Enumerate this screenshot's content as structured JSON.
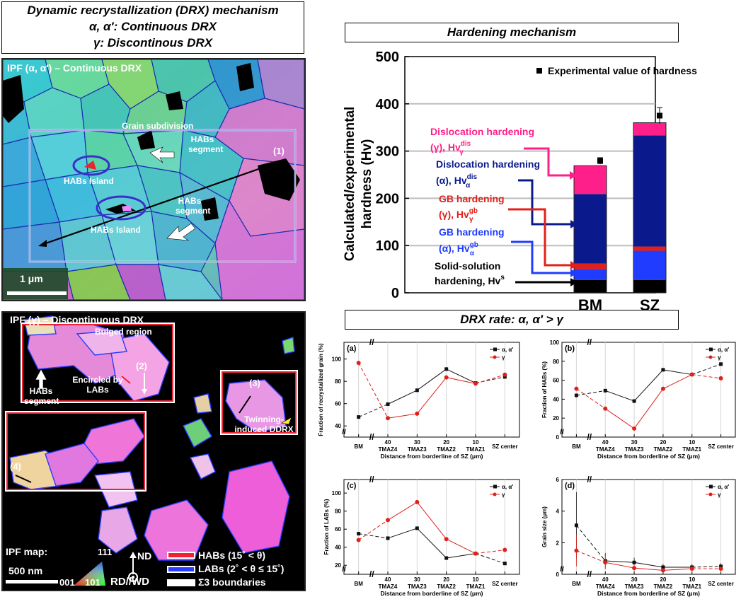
{
  "top_left_title": {
    "line1": "Dynamic recrystallization (DRX) mechanism",
    "line2": "α, α′: Continuous DRX",
    "line3": "γ: Discontinous DRX"
  },
  "ipf_top": {
    "label": "IPF (α, α′) – Continuous DRX",
    "grain_subdivision": "Grain subdivision",
    "habs_segment_1": "HABs segment",
    "habs_segment_2": "HABs segment",
    "habs_island_1": "HABs Island",
    "habs_island_2": "HABs Island",
    "marker_1": "(1)",
    "scale": "1 μm"
  },
  "ipf_bottom": {
    "label": "IPF (γ) – Discontinuous DRX",
    "bulged_region": "Bulged region",
    "habs_segment": "HABs segment",
    "encircled": "Encircled by LABs",
    "marker_2": "(2)",
    "marker_3": "(3)",
    "marker_4": "(4)",
    "twinning": "Twinning-induced DDRX",
    "ipf_map": "IPF map:",
    "scale": "500 nm",
    "tri_111": "111",
    "tri_001": "001",
    "tri_101": "101",
    "nd": "ND",
    "rdwd": "RD//WD",
    "legend_habs": "HABs (15˚ < θ)",
    "legend_labs": "LABs (2˚ < θ ≤ 15˚)",
    "legend_s3": "Σ3 boundaries"
  },
  "hardening": {
    "title": "Hardening mechanism",
    "legend": "Experimental value of hardness",
    "ylabel1": "Calculated/experimental",
    "ylabel2": "hardness (Hv)",
    "ann_disl_gamma_1": "Dislocation hardening",
    "ann_disl_gamma_2": "(γ), Hv",
    "ann_disl_alpha_1": "Dislocation hardening",
    "ann_disl_alpha_2": "(α), Hv",
    "ann_gb_gamma_1": "GB hardening",
    "ann_gb_gamma_2": "(γ), Hv",
    "ann_gb_alpha_1": "GB hardening",
    "ann_gb_alpha_2": "(α), Hv",
    "ann_ss_1": "Solid-solution",
    "ann_ss_2": "hardening, Hv",
    "sup_dis": "dis",
    "sub_gamma": "γ",
    "sub_alpha": "α",
    "sup_gb": "gb",
    "sup_s": "s"
  },
  "drx_title": "DRX rate: α, α′ > γ",
  "colors": {
    "black": "#000000",
    "blue_light": "#1f3cff",
    "red": "#e0201a",
    "navy": "#0a1a8c",
    "pink": "#ff1f8a",
    "alpha_line": "#111111",
    "gamma_line": "#e0201a"
  },
  "chart_data": [
    {
      "type": "bar",
      "stacked": true,
      "title": "Hardening mechanism",
      "categories": [
        "BM",
        "SZ"
      ],
      "ylim": [
        0,
        500
      ],
      "yticks": [
        0,
        100,
        200,
        300,
        400,
        500
      ],
      "ylabel": "Calculated/experimental hardness (Hv)",
      "series": [
        {
          "name": "Solid-solution hardening, Hv^s",
          "color": "#000000",
          "values": [
            27,
            27
          ]
        },
        {
          "name": "GB hardening (α), Hv_α^gb",
          "color": "#1f3cff",
          "values": [
            23,
            62
          ]
        },
        {
          "name": "GB hardening (γ), Hv_γ^gb",
          "color": "#e0201a",
          "values": [
            12,
            9
          ]
        },
        {
          "name": "Dislocation hardening (α), Hv_α^dis",
          "color": "#0a1a8c",
          "values": [
            147,
            235
          ]
        },
        {
          "name": "Dislocation hardening (γ), Hv_γ^dis",
          "color": "#ff1f8a",
          "values": [
            60,
            27
          ]
        }
      ],
      "experimental": {
        "name": "Experimental value of hardness",
        "values": [
          279,
          375
        ],
        "errors": [
          7,
          17
        ]
      }
    },
    {
      "type": "line",
      "panel": "(a)",
      "categories": [
        "BM",
        "40",
        "30",
        "20",
        "10",
        "SZ center"
      ],
      "subcategories": [
        "",
        "TMAZ4",
        "TMAZ3",
        "TMAZ2",
        "TMAZ1",
        ""
      ],
      "xlabel": "Distance from borderline of SZ (μm)",
      "ylabel": "Fraction of recrystallized grain (%)",
      "ylim": [
        30,
        115
      ],
      "yticks": [
        40,
        60,
        80,
        100
      ],
      "series": [
        {
          "name": "α, α′",
          "values": [
            48,
            59.5,
            72,
            91,
            78.5,
            84
          ]
        },
        {
          "name": "γ",
          "values": [
            96.5,
            47,
            51,
            83.5,
            78,
            86
          ]
        }
      ]
    },
    {
      "type": "line",
      "panel": "(b)",
      "categories": [
        "BM",
        "40",
        "30",
        "20",
        "10",
        "SZ center"
      ],
      "subcategories": [
        "",
        "TMAZ4",
        "TMAZ3",
        "TMAZ2",
        "TMAZ1",
        ""
      ],
      "xlabel": "Distance from borderline of SZ (μm)",
      "ylabel": "Fraction of HABs (%)",
      "ylim": [
        0,
        100
      ],
      "yticks": [
        0,
        20,
        40,
        60,
        80,
        100
      ],
      "series": [
        {
          "name": "α, α′",
          "values": [
            44,
            49,
            38,
            71,
            66,
            77
          ]
        },
        {
          "name": "γ",
          "values": [
            51,
            30,
            9,
            51,
            66,
            62
          ]
        }
      ]
    },
    {
      "type": "line",
      "panel": "(c)",
      "categories": [
        "BM",
        "40",
        "30",
        "20",
        "10",
        "SZ center"
      ],
      "subcategories": [
        "",
        "TMAZ4",
        "TMAZ3",
        "TMAZ2",
        "TMAZ1",
        ""
      ],
      "xlabel": "Distance from borderline of SZ (μm)",
      "ylabel": "Fraction of LABs (%)",
      "ylim": [
        10,
        115
      ],
      "yticks": [
        20,
        40,
        60,
        80,
        100
      ],
      "series": [
        {
          "name": "α, α′",
          "values": [
            55,
            50,
            61,
            28,
            33,
            22
          ]
        },
        {
          "name": "γ",
          "values": [
            48,
            70,
            90,
            49,
            33,
            37
          ]
        }
      ]
    },
    {
      "type": "line",
      "panel": "(d)",
      "categories": [
        "BM",
        "40",
        "30",
        "20",
        "10",
        "SZ center"
      ],
      "subcategories": [
        "",
        "TMAZ4",
        "TMAZ3",
        "TMAZ2",
        "TMAZ1",
        ""
      ],
      "xlabel": "Distance from borderline of SZ (μm)",
      "ylabel": "Grain size (μm)",
      "ylim": [
        0,
        6
      ],
      "yticks": [
        0,
        2,
        4,
        6
      ],
      "series": [
        {
          "name": "α, α′",
          "values": [
            3.1,
            0.85,
            0.75,
            0.45,
            0.45,
            0.5
          ],
          "errors": [
            2.1,
            0.5,
            0.3,
            0.2,
            0.2,
            0.2
          ]
        },
        {
          "name": "γ",
          "values": [
            1.5,
            0.75,
            0.4,
            0.25,
            0.35,
            0.35
          ],
          "errors": [
            1.0,
            0.4,
            0.2,
            0.1,
            0.1,
            0.1
          ]
        }
      ]
    }
  ]
}
